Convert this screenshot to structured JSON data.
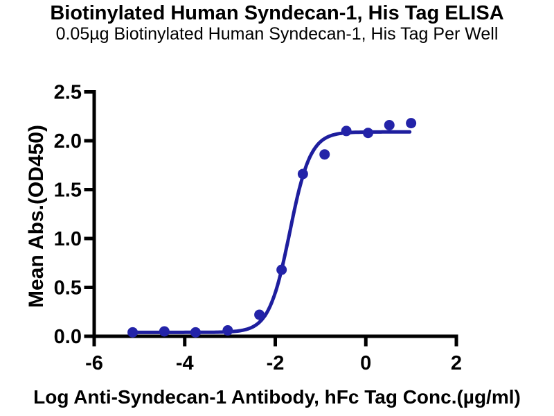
{
  "chart_data": {
    "type": "scatter",
    "title": "Biotinylated Human Syndecan-1, His Tag ELISA",
    "subtitle": "0.05µg Biotinylated Human Syndecan-1, His Tag Per Well",
    "xlabel": "Log Anti-Syndecan-1 Antibody, hFc Tag Conc.(µg/ml)",
    "ylabel": "Mean Abs.(OD450)",
    "xlim": [
      -6,
      2
    ],
    "ylim": [
      0,
      2.5
    ],
    "x_ticks": [
      "-6",
      "-4",
      "-2",
      "0",
      "2"
    ],
    "y_ticks": [
      "0.0",
      "0.5",
      "1.0",
      "1.5",
      "2.0",
      "2.5"
    ],
    "grid": false,
    "legend": false,
    "axis_color": "#000000",
    "background_color": "#ffffff",
    "series": [
      {
        "name": "Anti-Syndecan-1 Antibody, hFc Tag",
        "marker": "circle",
        "marker_color": "#2323a8",
        "points": [
          {
            "x": -5.15,
            "y": 0.04
          },
          {
            "x": -4.45,
            "y": 0.05
          },
          {
            "x": -3.76,
            "y": 0.04
          },
          {
            "x": -3.05,
            "y": 0.06
          },
          {
            "x": -2.35,
            "y": 0.22
          },
          {
            "x": -1.86,
            "y": 0.68
          },
          {
            "x": -1.39,
            "y": 1.66
          },
          {
            "x": -0.91,
            "y": 1.86
          },
          {
            "x": -0.43,
            "y": 2.1
          },
          {
            "x": 0.05,
            "y": 2.08
          },
          {
            "x": 0.52,
            "y": 2.16
          },
          {
            "x": 1.0,
            "y": 2.18
          }
        ]
      }
    ],
    "fit_curve": {
      "model": "4PL",
      "bottom": 0.04,
      "top": 2.09,
      "log_ec50": -1.68,
      "hill_slope": 1.9,
      "color": "#1e1e9e"
    }
  }
}
